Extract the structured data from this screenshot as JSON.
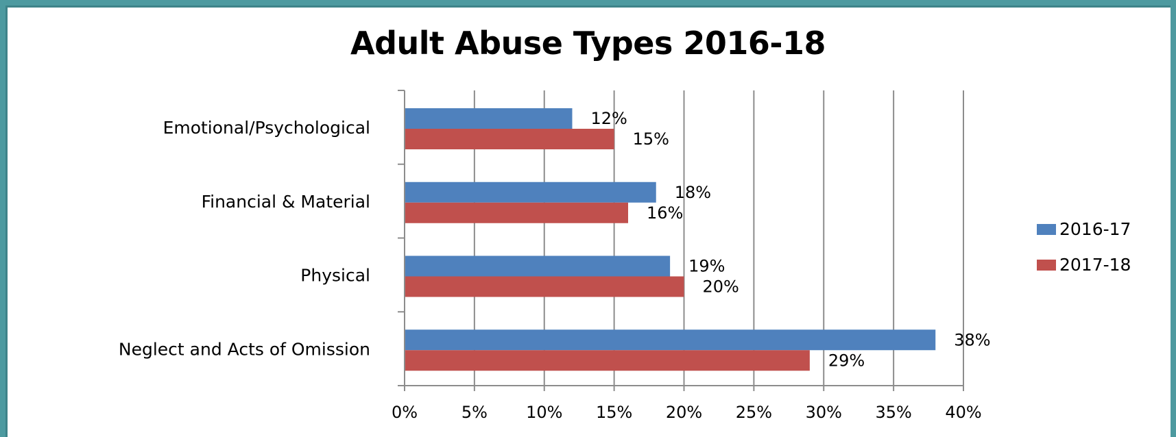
{
  "chart_data": {
    "type": "bar",
    "orientation": "horizontal",
    "title": "Adult Abuse Types 2016-18",
    "categories": [
      "Emotional/Psychological",
      "Financial & Material",
      "Physical",
      "Neglect and Acts of Omission"
    ],
    "series": [
      {
        "name": "2016-17",
        "values": [
          12,
          18,
          19,
          38
        ],
        "labels": [
          "12%",
          "18%",
          "19%",
          "38%"
        ],
        "color": "#4f81bd"
      },
      {
        "name": "2017-18",
        "values": [
          15,
          16,
          20,
          29
        ],
        "labels": [
          "15%",
          "16%",
          "20%",
          "29%"
        ],
        "color": "#c0504d"
      }
    ],
    "xlim": [
      0,
      40
    ],
    "x_ticks": [
      0,
      5,
      10,
      15,
      20,
      25,
      30,
      35,
      40
    ],
    "x_tick_labels": [
      "0%",
      "5%",
      "10%",
      "15%",
      "20%",
      "25%",
      "30%",
      "35%",
      "40%"
    ],
    "grid": true,
    "legend_position": "right"
  }
}
